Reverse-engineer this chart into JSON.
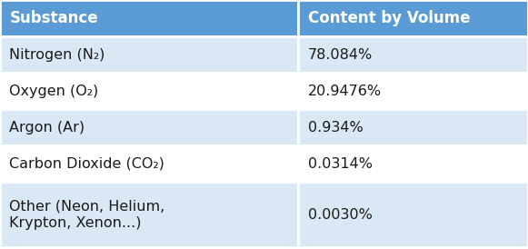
{
  "header": [
    "Substance",
    "Content by Volume"
  ],
  "rows": [
    [
      "Nitrogen (N₂)",
      "78.084%"
    ],
    [
      "Oxygen (O₂)",
      "20.9476%"
    ],
    [
      "Argon (Ar)",
      "0.934%"
    ],
    [
      "Carbon Dioxide (CO₂)",
      "0.0314%"
    ],
    [
      "Other (Neon, Helium,\nKrypton, Xenon...)",
      "0.0030%"
    ]
  ],
  "header_bg": "#5B9BD5",
  "header_text_color": "#FFFFFF",
  "row_bg_1": "#DAE8F5",
  "row_bg_2": "#FFFFFF",
  "row_text_color": "#1A1A1A",
  "col_split": 0.565,
  "font_size": 11.5,
  "header_font_size": 12,
  "fig_width": 5.81,
  "fig_height": 2.74,
  "dpi": 100
}
